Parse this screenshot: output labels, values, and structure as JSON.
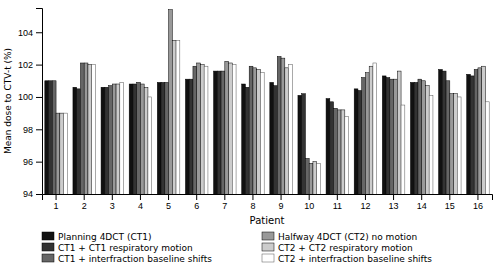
{
  "chart_data": {
    "type": "bar",
    "x_label": "Patient",
    "y_label": "Mean dose to CTV-t (%)",
    "categories": [
      "1",
      "2",
      "3",
      "4",
      "5",
      "6",
      "7",
      "8",
      "9",
      "10",
      "11",
      "12",
      "13",
      "14",
      "15",
      "16"
    ],
    "series": [
      {
        "name": "Planning 4DCT (CT1)",
        "color": "#111111",
        "values": [
          101.0,
          100.6,
          100.6,
          100.8,
          100.9,
          101.1,
          101.6,
          100.8,
          100.9,
          100.1,
          99.9,
          100.5,
          101.3,
          100.9,
          101.7,
          101.4
        ]
      },
      {
        "name": "CT1 + CT1 respiratory motion",
        "color": "#333333",
        "values": [
          101.0,
          100.5,
          100.6,
          100.8,
          100.9,
          101.1,
          101.6,
          100.6,
          100.7,
          100.2,
          99.7,
          100.4,
          101.2,
          100.9,
          101.6,
          101.3
        ]
      },
      {
        "name": "CT1 + interfraction baseline shifts",
        "color": "#666666",
        "values": [
          101.0,
          102.1,
          100.7,
          100.9,
          100.9,
          101.9,
          101.6,
          101.9,
          102.5,
          96.2,
          99.3,
          101.2,
          101.1,
          101.1,
          101.0,
          101.7
        ]
      },
      {
        "name": "Halfway 4DCT (CT2) no motion",
        "color": "#999999",
        "values": [
          99.0,
          102.1,
          100.8,
          100.8,
          105.4,
          102.1,
          102.2,
          101.8,
          102.4,
          95.9,
          99.2,
          101.5,
          101.1,
          101.0,
          100.2,
          101.8
        ]
      },
      {
        "name": "CT2 + CT2 respiratory motion",
        "color": "#cccccc",
        "values": [
          99.0,
          102.0,
          100.8,
          100.6,
          103.5,
          102.0,
          102.1,
          101.7,
          101.8,
          96.0,
          99.2,
          101.9,
          101.6,
          100.7,
          100.2,
          101.9
        ]
      },
      {
        "name": "CT2 + interfraction baseline shifts",
        "color": "#ffffff",
        "values": [
          99.0,
          102.0,
          100.9,
          100.0,
          103.5,
          101.9,
          102.0,
          101.5,
          102.0,
          95.9,
          98.8,
          102.1,
          99.5,
          100.1,
          100.0,
          99.7
        ]
      }
    ],
    "ylim": [
      94,
      105.5
    ],
    "yticks": [
      94,
      96,
      98,
      100,
      102,
      104
    ],
    "grid": false,
    "legend": "lower left"
  }
}
